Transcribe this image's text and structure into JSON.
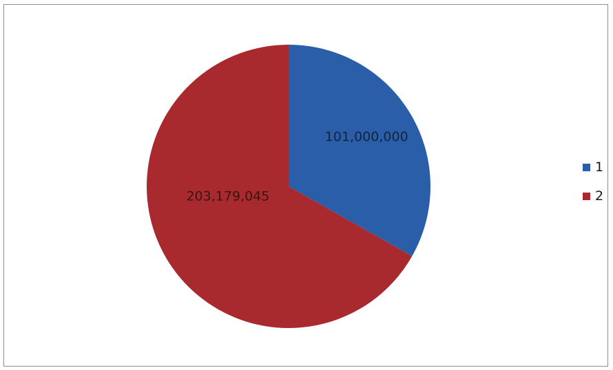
{
  "chart_data": {
    "type": "pie",
    "categories": [
      "1",
      "2"
    ],
    "values": [
      101000000,
      203179045
    ],
    "data_labels": [
      "101,000,000",
      "203,179,045"
    ],
    "colors": [
      "#2a5ea8",
      "#a82a2e"
    ],
    "legend_position": "right"
  },
  "legend": {
    "items": [
      {
        "label": "1",
        "color": "#2a5ea8"
      },
      {
        "label": "2",
        "color": "#a82a2e"
      }
    ]
  }
}
